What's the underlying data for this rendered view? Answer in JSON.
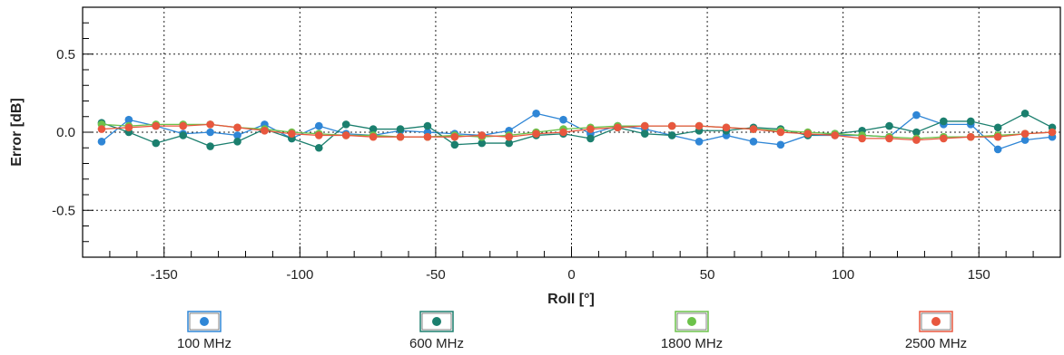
{
  "chart_data": {
    "type": "line",
    "title": "",
    "xlabel": "Roll [°]",
    "ylabel": "Error [dB]",
    "xlim": [
      -180,
      180
    ],
    "ylim": [
      -0.8,
      0.8
    ],
    "x_ticks": [
      -150,
      -100,
      -50,
      0,
      50,
      100,
      150
    ],
    "y_ticks": [
      -0.5,
      0.0,
      0.5
    ],
    "x_tick_labels": [
      "-150",
      "-100",
      "-50",
      "0",
      "50",
      "100",
      "150"
    ],
    "y_tick_labels": [
      "-0.5",
      "0.0",
      "0.5"
    ],
    "grid": true,
    "legend_position": "bottom",
    "x": [
      -173,
      -163,
      -153,
      -143,
      -133,
      -123,
      -113,
      -103,
      -93,
      -83,
      -73,
      -63,
      -53,
      -43,
      -33,
      -23,
      -13,
      -3,
      7,
      17,
      27,
      37,
      47,
      57,
      67,
      77,
      87,
      97,
      107,
      117,
      127,
      137,
      147,
      157,
      167,
      177
    ],
    "series": [
      {
        "name": "100 MHz",
        "color": "#2f86d6",
        "values": [
          -0.06,
          0.08,
          0.04,
          -0.01,
          0.0,
          -0.02,
          0.05,
          -0.04,
          0.04,
          -0.01,
          -0.02,
          0.01,
          0.0,
          -0.01,
          -0.02,
          0.01,
          0.12,
          0.08,
          -0.01,
          0.04,
          0.02,
          -0.02,
          -0.06,
          -0.02,
          -0.06,
          -0.08,
          -0.02,
          -0.02,
          -0.02,
          -0.03,
          0.11,
          0.05,
          0.05,
          -0.11,
          -0.05,
          -0.03
        ]
      },
      {
        "name": "600 MHz",
        "color": "#1b7f6e",
        "values": [
          0.06,
          0.0,
          -0.07,
          -0.02,
          -0.09,
          -0.06,
          0.02,
          -0.04,
          -0.1,
          0.05,
          0.02,
          0.02,
          0.04,
          -0.08,
          -0.07,
          -0.07,
          -0.02,
          -0.01,
          -0.04,
          0.03,
          -0.01,
          -0.02,
          0.01,
          0.01,
          0.03,
          0.02,
          -0.02,
          -0.01,
          0.01,
          0.04,
          0.0,
          0.07,
          0.07,
          0.03,
          0.12,
          0.03
        ]
      },
      {
        "name": "1800 MHz",
        "color": "#6cc24a",
        "values": [
          0.05,
          0.04,
          0.05,
          0.05,
          0.05,
          0.03,
          0.02,
          0.0,
          -0.01,
          -0.02,
          -0.02,
          -0.03,
          -0.03,
          -0.02,
          -0.03,
          -0.02,
          0.0,
          0.02,
          0.03,
          0.04,
          0.04,
          0.04,
          0.04,
          0.03,
          0.02,
          0.01,
          0.0,
          -0.01,
          -0.02,
          -0.03,
          -0.04,
          -0.03,
          -0.03,
          -0.02,
          -0.01,
          0.0
        ]
      },
      {
        "name": "2500 MHz",
        "color": "#e8573e",
        "values": [
          0.02,
          0.03,
          0.04,
          0.04,
          0.05,
          0.03,
          0.01,
          -0.01,
          -0.02,
          -0.02,
          -0.03,
          -0.03,
          -0.03,
          -0.03,
          -0.02,
          -0.03,
          -0.01,
          0.0,
          0.02,
          0.03,
          0.04,
          0.04,
          0.04,
          0.03,
          0.02,
          0.0,
          -0.01,
          -0.02,
          -0.04,
          -0.04,
          -0.05,
          -0.04,
          -0.03,
          -0.03,
          -0.01,
          0.0
        ]
      }
    ]
  }
}
